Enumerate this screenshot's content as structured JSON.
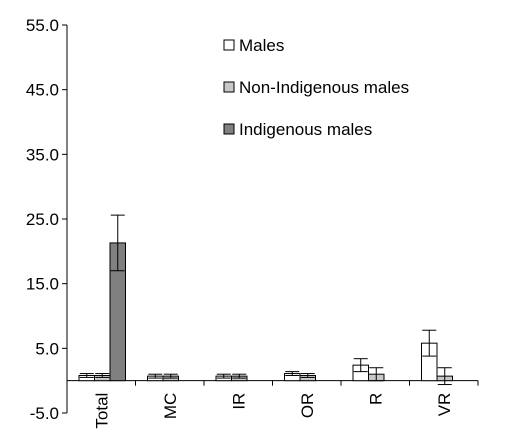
{
  "chart_data": {
    "type": "bar",
    "categories": [
      "Total",
      "MC",
      "IR",
      "OR",
      "R",
      "VR"
    ],
    "series": [
      {
        "name": "Males",
        "color": "#ffffff",
        "values": [
          0.8,
          0.7,
          0.7,
          1.1,
          2.4,
          5.8
        ],
        "error": [
          0.3,
          0.3,
          0.3,
          0.3,
          1.0,
          2.0
        ]
      },
      {
        "name": "Non-Indigenous males",
        "color": "#c8c8c8",
        "values": [
          0.8,
          0.7,
          0.7,
          0.8,
          1.0,
          0.7
        ],
        "error": [
          0.3,
          0.3,
          0.3,
          0.3,
          1.0,
          1.3
        ]
      },
      {
        "name": "Indigenous males",
        "color": "#808080",
        "values": [
          21.3,
          null,
          null,
          null,
          null,
          null
        ],
        "error": [
          4.3,
          null,
          null,
          null,
          null,
          null
        ]
      }
    ],
    "ylim": [
      -5.0,
      55.0
    ],
    "yticks": [
      "-5.0",
      "5.0",
      "15.0",
      "25.0",
      "35.0",
      "45.0",
      "55.0"
    ],
    "legend_position": "top-center",
    "grid": false
  }
}
